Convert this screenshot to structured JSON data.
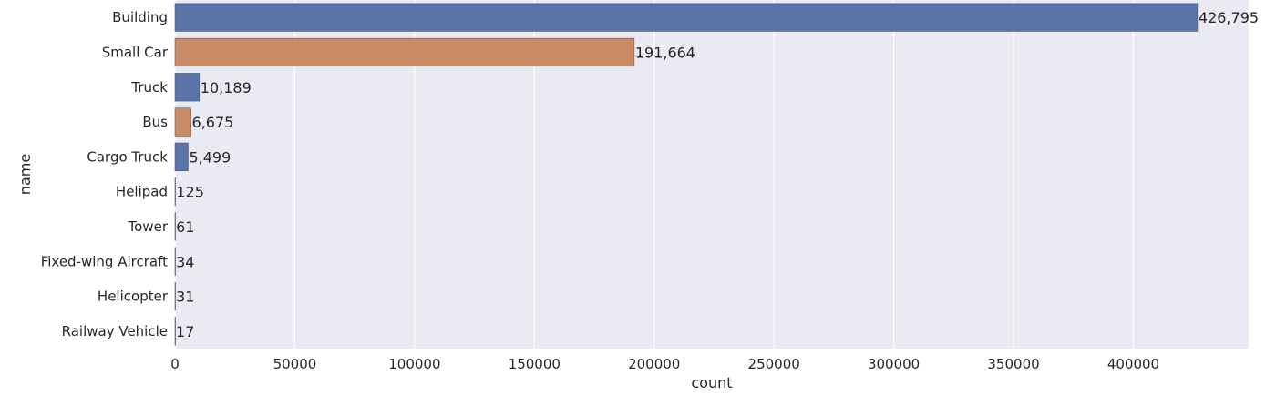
{
  "chart_data": {
    "type": "bar",
    "orientation": "horizontal",
    "categories": [
      "Building",
      "Small Car",
      "Truck",
      "Bus",
      "Cargo Truck",
      "Helipad",
      "Tower",
      "Fixed-wing Aircraft",
      "Helicopter",
      "Railway Vehicle"
    ],
    "values": [
      426795,
      191664,
      10189,
      6675,
      5499,
      125,
      61,
      34,
      31,
      17
    ],
    "data_labels": [
      "426,795",
      "191,664",
      "10,189",
      "6,675",
      "5,499",
      "125",
      "61",
      "34",
      "31",
      "17"
    ],
    "bar_colors": [
      "#5a73a8",
      "#c98a66",
      "#5a73a8",
      "#c98a66",
      "#5a73a8",
      "#5a73a8",
      "#5a73a8",
      "#5a73a8",
      "#5a73a8",
      "#5a73a8"
    ],
    "xlabel": "count",
    "ylabel": "name",
    "xticks": [
      0,
      50000,
      100000,
      150000,
      200000,
      250000,
      300000,
      350000,
      400000
    ],
    "xtick_labels": [
      "0",
      "50000",
      "100000",
      "150000",
      "200000",
      "250000",
      "300000",
      "350000",
      "400000"
    ],
    "xlim": [
      0,
      448135
    ],
    "grid": true,
    "background": "#eaeaf2"
  }
}
